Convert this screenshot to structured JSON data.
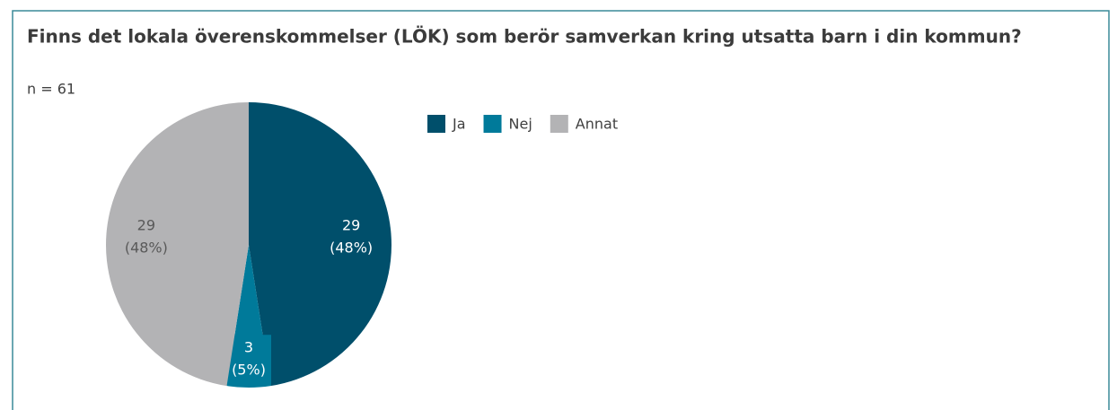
{
  "chart_data": {
    "type": "pie",
    "title": "Finns det lokala överenskommelser (LÖK) som berör samverkan kring utsatta barn i din kommun?",
    "subtitle": "n = 61",
    "categories": [
      "Ja",
      "Nej",
      "Annat"
    ],
    "values": [
      29,
      3,
      29
    ],
    "percent_labels": [
      "(48%)",
      "(5%)",
      "(48%)"
    ],
    "colors": [
      "#004f6b",
      "#007a9a",
      "#b3b3b5"
    ],
    "label_colors": [
      "#ffffff",
      "#ffffff",
      "#595959"
    ],
    "legend": "top-right"
  }
}
